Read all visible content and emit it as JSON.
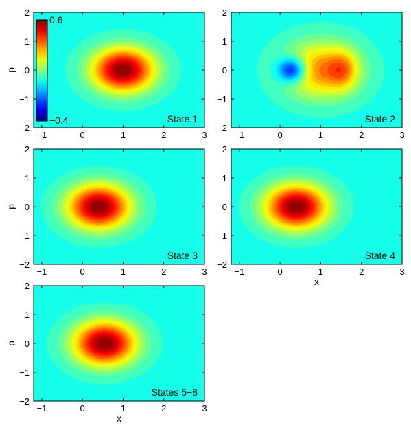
{
  "chart_data": [
    {
      "type": "heatmap",
      "label": "State 1",
      "xlabel": "",
      "ylabel": "p",
      "xlim": [
        -1.2,
        3
      ],
      "ylim": [
        -2,
        2
      ],
      "x_ticks": [
        "−1",
        "0",
        "1",
        "2",
        "3"
      ],
      "y_ticks": [
        "2",
        "1",
        "0",
        "−1",
        "−2"
      ],
      "components": [
        {
          "amp": 0.6,
          "x0": 1.0,
          "y0": 0.0,
          "sx": 0.75,
          "sy": 0.75
        }
      ],
      "colorbar": {
        "min": -0.4,
        "max": 0.6,
        "min_label": "−0.4",
        "max_label": "0.6"
      }
    },
    {
      "type": "heatmap",
      "label": "State 2",
      "xlabel": "",
      "ylabel": "",
      "xlim": [
        -1.2,
        3
      ],
      "ylim": [
        -2,
        2
      ],
      "x_ticks": [
        "−1",
        "0",
        "1",
        "2",
        "3"
      ],
      "y_ticks": [
        "2",
        "1",
        "0",
        "−1",
        "−2"
      ],
      "components": [
        {
          "amp": -0.4,
          "x0": 0.3,
          "y0": 0.0,
          "sx": 0.35,
          "sy": 0.42
        },
        {
          "amp": 0.35,
          "x0": 1.0,
          "y0": 0.0,
          "sx": 0.9,
          "sy": 0.95
        },
        {
          "amp": 0.18,
          "x0": 1.55,
          "y0": 0.0,
          "sx": 0.35,
          "sy": 0.65
        }
      ]
    },
    {
      "type": "heatmap",
      "label": "State 3",
      "xlabel": "",
      "ylabel": "p",
      "xlim": [
        -1.2,
        3
      ],
      "ylim": [
        -2,
        2
      ],
      "x_ticks": [
        "−1",
        "0",
        "1",
        "2",
        "3"
      ],
      "y_ticks": [
        "2",
        "1",
        "0",
        "−1",
        "−2"
      ],
      "components": [
        {
          "amp": 0.6,
          "x0": 0.4,
          "y0": 0.0,
          "sx": 0.75,
          "sy": 0.75
        }
      ]
    },
    {
      "type": "heatmap",
      "label": "State 4",
      "xlabel": "x",
      "ylabel": "",
      "xlim": [
        -1.2,
        3
      ],
      "ylim": [
        -2,
        2
      ],
      "x_ticks": [
        "−1",
        "0",
        "1",
        "2",
        "3"
      ],
      "y_ticks": [
        "2",
        "1",
        "0",
        "−1",
        "−2"
      ],
      "components": [
        {
          "amp": 0.6,
          "x0": 0.4,
          "y0": 0.0,
          "sx": 0.75,
          "sy": 0.75
        }
      ]
    },
    {
      "type": "heatmap",
      "label": "States 5−8",
      "xlabel": "x",
      "ylabel": "p",
      "xlim": [
        -1.2,
        3
      ],
      "ylim": [
        -2,
        2
      ],
      "x_ticks": [
        "−1",
        "0",
        "1",
        "2",
        "3"
      ],
      "y_ticks": [
        "2",
        "1",
        "0",
        "−1",
        "−2"
      ],
      "components": [
        {
          "amp": 0.6,
          "x0": 0.55,
          "y0": 0.0,
          "sx": 0.75,
          "sy": 0.75
        }
      ]
    }
  ]
}
